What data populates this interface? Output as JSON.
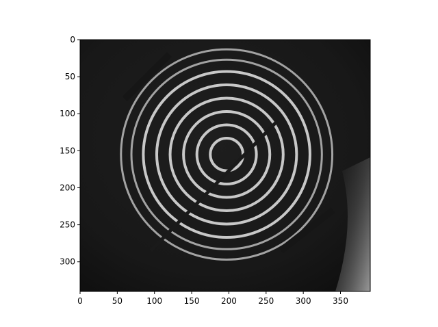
{
  "chart_data": {
    "type": "heatmap",
    "title": "",
    "xlabel": "",
    "ylabel": "",
    "xlim": [
      0,
      390
    ],
    "ylim": [
      0,
      340
    ],
    "y_inverted": true,
    "x_ticks": [
      "0",
      "50",
      "100",
      "150",
      "200",
      "250",
      "300",
      "350"
    ],
    "x_tick_values": [
      0,
      50,
      100,
      150,
      200,
      250,
      300,
      350
    ],
    "y_ticks": [
      "0",
      "50",
      "100",
      "150",
      "200",
      "250",
      "300"
    ],
    "y_tick_values": [
      0,
      50,
      100,
      150,
      200,
      250,
      300
    ],
    "colormap": "gray",
    "grid": false,
    "legend": "none",
    "image_content": {
      "subject": "grayscale photograph of concentric bright rings (placido-disc style reflection) on a dark background",
      "ring_center": [
        197,
        155
      ],
      "ring_radii": [
        22,
        40,
        58,
        76,
        94,
        112,
        128,
        142
      ],
      "bright_region": "lower-right corner"
    }
  },
  "colors": {
    "background": "#ffffff",
    "image_dark": "#1c1c1c",
    "ring": "#d2d2d2",
    "axes": "#000000"
  }
}
